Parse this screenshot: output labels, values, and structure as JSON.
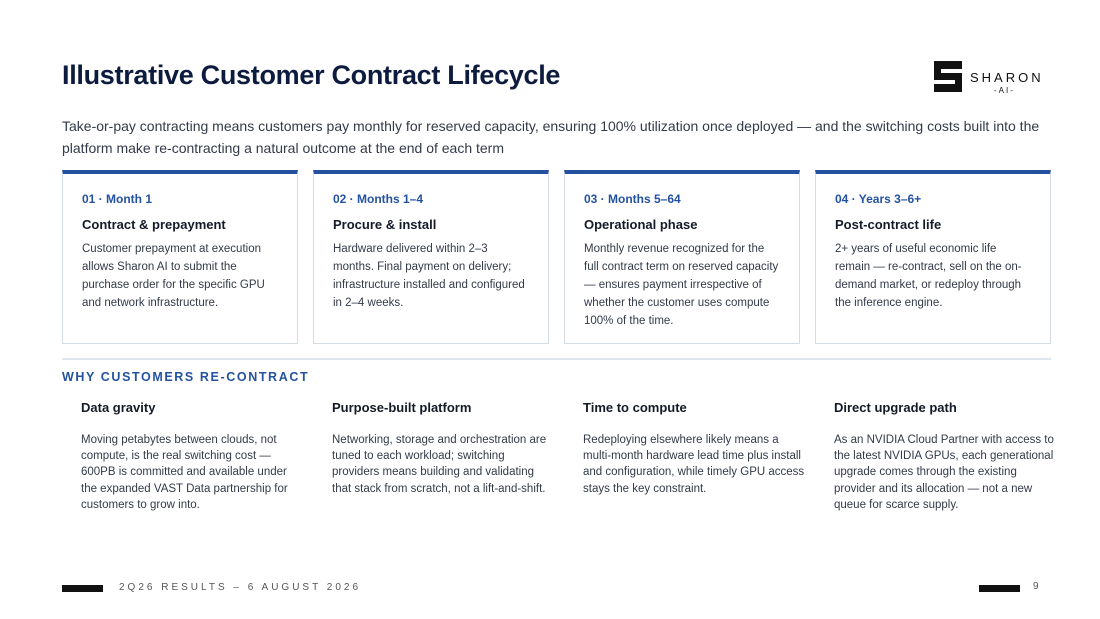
{
  "header": {
    "title": "Illustrative Customer Contract Lifecycle",
    "subtitle": "Take-or-pay contracting means customers pay monthly for reserved capacity, ensuring 100% utilization once deployed — and the switching costs built into the platform make re-contracting a natural outcome at the end of each term",
    "logo": {
      "name": "SHARON",
      "tag": "-AI-"
    }
  },
  "stages": [
    {
      "label": "01 · Month 1",
      "heading": "Contract & prepayment",
      "body": "Customer prepayment at execution allows Sharon AI to submit the purchase order for the specific GPU and network infrastructure."
    },
    {
      "label": "02 · Months 1–4",
      "heading": "Procure & install",
      "body": "Hardware delivered within 2–3 months. Final payment on delivery; infrastructure installed and configured in 2–4 weeks."
    },
    {
      "label": "03 · Months 5–64",
      "heading": "Operational phase",
      "body": "Monthly revenue recognized for the full contract term on reserved capacity — ensures payment irrespective of whether the customer uses compute 100% of the time."
    },
    {
      "label": "04 · Years 3–6+",
      "heading": "Post-contract life",
      "body": "2+ years of useful economic life remain — re-contract, sell on the on-demand market, or redeploy through the inference engine."
    }
  ],
  "reasons": {
    "title": "WHY CUSTOMERS RE-CONTRACT",
    "items": [
      {
        "heading": "Data gravity",
        "body": "Moving petabytes between clouds, not compute, is the real switching cost — 600PB is committed and available under the expanded VAST Data partnership for customers to grow into."
      },
      {
        "heading": "Purpose-built platform",
        "body": "Networking, storage and orchestration are tuned to each workload; switching providers means building and validating that stack from scratch, not a lift-and-shift."
      },
      {
        "heading": "Time to compute",
        "body": "Redeploying elsewhere likely means a multi-month hardware lead time plus install and configuration, while timely GPU access stays the key constraint."
      },
      {
        "heading": "Direct upgrade path",
        "body": "As an NVIDIA Cloud Partner with access to the latest NVIDIA GPUs, each generational upgrade comes through the existing provider and its allocation — not a new queue for scarce supply."
      }
    ]
  },
  "footer": {
    "text": "2Q26 RESULTS – 6 AUGUST 2026",
    "page": "9"
  }
}
